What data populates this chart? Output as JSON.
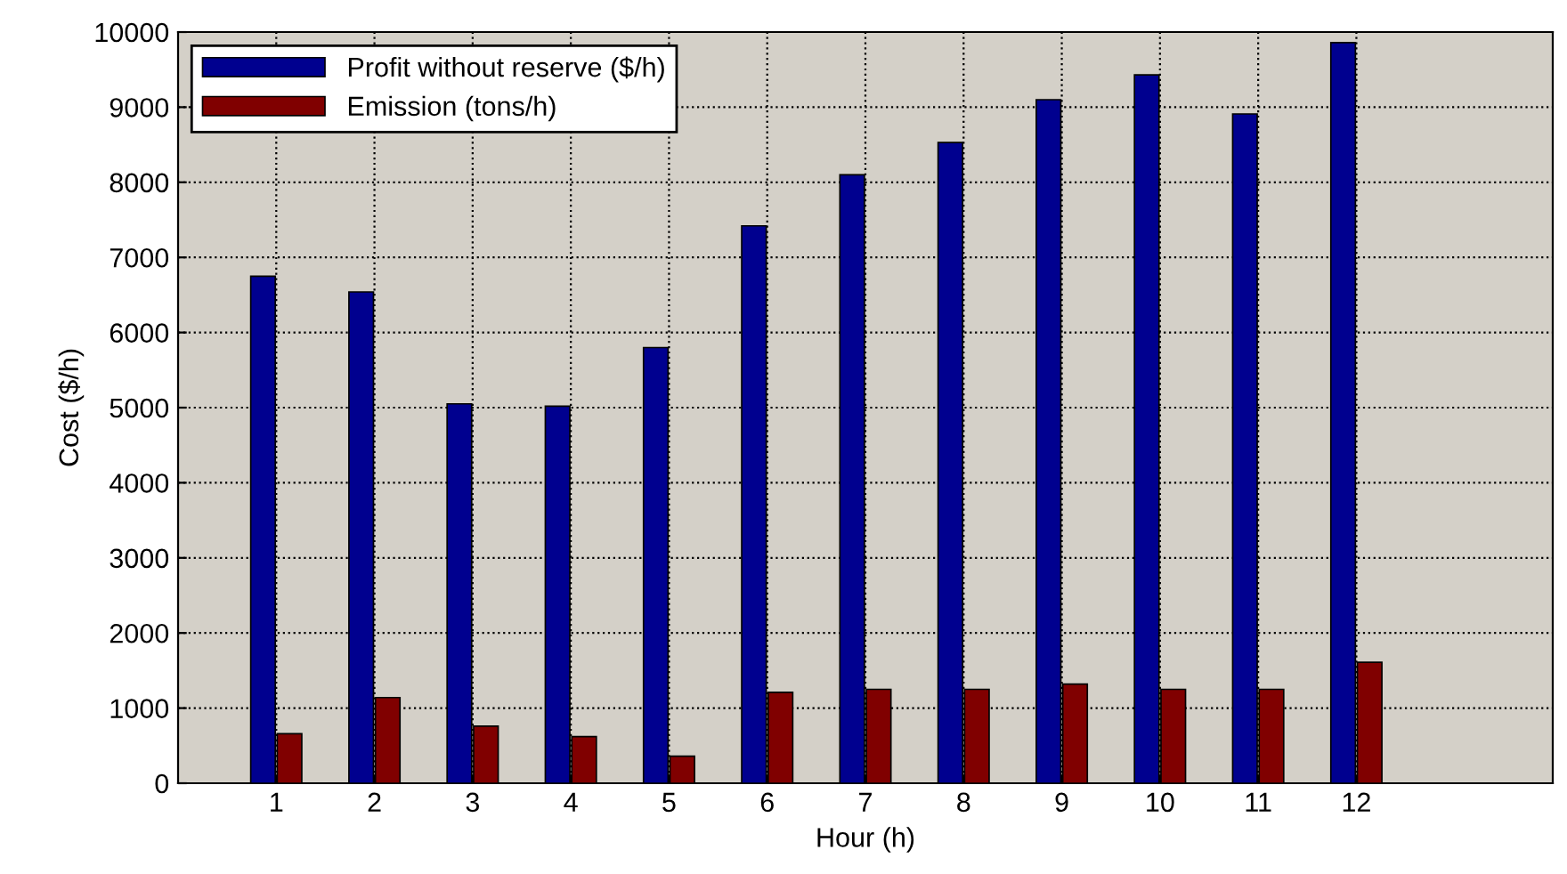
{
  "chart_data": {
    "type": "bar",
    "xlabel": "Hour (h)",
    "ylabel": "Cost ($/h)",
    "x": [
      1,
      2,
      3,
      4,
      5,
      6,
      7,
      8,
      9,
      10,
      11,
      12
    ],
    "series": [
      {
        "name": "Profit without reserve ($/h)",
        "color": "#00008f",
        "values": [
          6750,
          6540,
          5050,
          5020,
          5800,
          7420,
          8100,
          8530,
          9100,
          9430,
          8910,
          9860
        ]
      },
      {
        "name": "Emission (tons/h)",
        "color": "#800000",
        "values": [
          660,
          1140,
          760,
          620,
          360,
          1210,
          1250,
          1250,
          1320,
          1250,
          1250,
          1610
        ]
      }
    ],
    "xlim": [
      0,
      14
    ],
    "xticks": [
      1,
      2,
      3,
      4,
      5,
      6,
      7,
      8,
      9,
      10,
      11,
      12
    ],
    "ylim": [
      0,
      10000
    ],
    "yticks": [
      0,
      1000,
      2000,
      3000,
      4000,
      5000,
      6000,
      7000,
      8000,
      9000,
      10000
    ],
    "grid": true,
    "legend": "top left"
  }
}
